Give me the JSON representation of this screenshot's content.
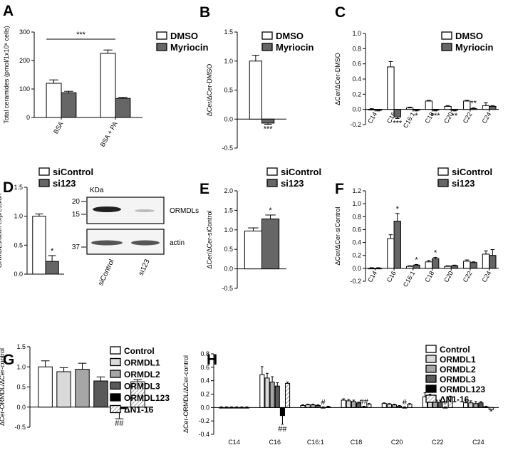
{
  "chart_data": [
    {
      "panel": "A",
      "type": "bar",
      "ylabel": "Total ceramides (pmol/1x10⁶ cells)",
      "categories": [
        "BSA",
        "BSA + PA"
      ],
      "series": [
        {
          "name": "DMSO",
          "color": "#ffffff",
          "values": [
            120,
            225
          ],
          "errors": [
            12,
            12
          ]
        },
        {
          "name": "Myriocin",
          "color": "#666666",
          "values": [
            87,
            67
          ],
          "errors": [
            5,
            4
          ]
        }
      ],
      "ylim": [
        0,
        300
      ],
      "yticks": [
        0,
        100,
        200,
        300
      ],
      "annotation": "***"
    },
    {
      "panel": "B",
      "type": "bar",
      "ylabel": "ΔCer/ΔCer-DMSO",
      "categories": [
        null
      ],
      "series": [
        {
          "name": "DMSO",
          "color": "#ffffff",
          "values": [
            1.0
          ],
          "errors": [
            0.1
          ]
        },
        {
          "name": "Myriocin",
          "color": "#666666",
          "values": [
            -0.07
          ],
          "errors": [
            0.02
          ]
        }
      ],
      "ylim": [
        -0.5,
        1.5
      ],
      "yticks": [
        {
          "value": -0.5,
          "label": "-0.5"
        },
        {
          "value": 0,
          "label": "0.0"
        },
        {
          "value": 0.5,
          "label": "0.5"
        },
        {
          "value": 1,
          "label": "1.0"
        },
        {
          "value": 1.5,
          "label": "1.5"
        }
      ],
      "sig": [
        "***"
      ]
    },
    {
      "panel": "C",
      "type": "bar",
      "ylabel": "ΔCer/ΔCer-DMSO",
      "categories": [
        "C14",
        "C16",
        "C16:1",
        "C18",
        "C20",
        "C22",
        "C24"
      ],
      "series": [
        {
          "name": "DMSO",
          "color": "#ffffff",
          "values": [
            0.0,
            0.56,
            0.02,
            0.11,
            0.04,
            0.11,
            0.05
          ],
          "errors": [
            0.01,
            0.07,
            0.01,
            0.01,
            0.01,
            0.01,
            0.04
          ]
        },
        {
          "name": "Myriocin",
          "color": "#666666",
          "values": [
            -0.01,
            -0.1,
            -0.01,
            -0.01,
            -0.01,
            0.01,
            0.04
          ],
          "errors": [
            0.01,
            0.02,
            0.01,
            0.01,
            0.01,
            0.01,
            0.01
          ]
        }
      ],
      "ylim": [
        -0.2,
        1.0
      ],
      "yticks": [
        {
          "value": -0.2,
          "label": "-0.2"
        },
        {
          "value": 0,
          "label": "0.0"
        },
        {
          "value": 0.2,
          "label": "0.2"
        },
        {
          "value": 0.4,
          "label": "0.4"
        },
        {
          "value": 0.6,
          "label": "0.6"
        },
        {
          "value": 0.8,
          "label": "0.8"
        },
        {
          "value": 1,
          "label": "1.0"
        }
      ],
      "sig": [
        null,
        "***",
        "*",
        "***",
        "**",
        "**",
        null
      ]
    },
    {
      "panel": "D",
      "type": "bar",
      "ylabel": "ORMDLs/actin expression",
      "categories": [
        null
      ],
      "series": [
        {
          "name": "siControl",
          "color": "#ffffff",
          "values": [
            1.0
          ],
          "errors": [
            0.04
          ]
        },
        {
          "name": "si123",
          "color": "#666666",
          "values": [
            0.22
          ],
          "errors": [
            0.1
          ]
        }
      ],
      "ylim": [
        0,
        1.5
      ],
      "yticks": [
        {
          "value": 0,
          "label": "0.0"
        },
        {
          "value": 0.5,
          "label": "0.5"
        },
        {
          "value": 1,
          "label": "1.0"
        },
        {
          "value": 1.5,
          "label": "1.5"
        }
      ],
      "sig": [
        "*"
      ]
    },
    {
      "panel": "E",
      "type": "bar",
      "ylabel": "ΔCer/ΔCer-siControl",
      "categories": [
        null
      ],
      "series": [
        {
          "name": "siControl",
          "color": "#ffffff",
          "values": [
            0.97
          ],
          "errors": [
            0.08
          ]
        },
        {
          "name": "si123",
          "color": "#666666",
          "values": [
            1.28
          ],
          "errors": [
            0.1
          ]
        }
      ],
      "ylim": [
        -0.5,
        2.0
      ],
      "yticks": [
        {
          "value": -0.5,
          "label": "-0.5"
        },
        {
          "value": 0,
          "label": "0.0"
        },
        {
          "value": 0.5,
          "label": "0.5"
        },
        {
          "value": 1,
          "label": "1.0"
        },
        {
          "value": 1.5,
          "label": "1.5"
        },
        {
          "value": 2,
          "label": "2.0"
        }
      ],
      "sig": [
        "*"
      ]
    },
    {
      "panel": "F",
      "type": "bar",
      "ylabel": "ΔCer/ΔCer-siControl",
      "categories": [
        "C14",
        "C16",
        "C16:1",
        "C18",
        "C20",
        "C22",
        "C24"
      ],
      "series": [
        {
          "name": "siControl",
          "color": "#ffffff",
          "values": [
            0.0,
            0.46,
            0.03,
            0.1,
            0.03,
            0.11,
            0.22
          ],
          "errors": [
            0.01,
            0.06,
            0.01,
            0.02,
            0.01,
            0.02,
            0.05
          ]
        },
        {
          "name": "si123",
          "color": "#666666",
          "values": [
            0.0,
            0.73,
            0.05,
            0.15,
            0.04,
            0.09,
            0.2
          ],
          "errors": [
            0.01,
            0.12,
            0.01,
            0.02,
            0.01,
            0.01,
            0.09
          ]
        }
      ],
      "ylim": [
        -0.2,
        1.2
      ],
      "yticks": [
        {
          "value": -0.2,
          "label": "-0.2"
        },
        {
          "value": 0,
          "label": "0.0"
        },
        {
          "value": 0.2,
          "label": "0.2"
        },
        {
          "value": 0.4,
          "label": "0.4"
        },
        {
          "value": 0.6,
          "label": "0.6"
        },
        {
          "value": 0.8,
          "label": "0.8"
        },
        {
          "value": 1,
          "label": "1.0"
        },
        {
          "value": 1.2,
          "label": "1.2"
        }
      ],
      "sig": [
        null,
        "*",
        "*",
        "*",
        null,
        null,
        null
      ]
    },
    {
      "panel": "G",
      "type": "bar",
      "ylabel": "ΔCer-ORMDL/ΔCer-control",
      "categories": [
        null
      ],
      "series": [
        {
          "name": "Control",
          "color": "#ffffff",
          "values": [
            1.0
          ],
          "errors": [
            0.15
          ]
        },
        {
          "name": "ORMDL1",
          "color": "#d9d9d9",
          "values": [
            0.88
          ],
          "errors": [
            0.1
          ]
        },
        {
          "name": "ORMDL2",
          "color": "#a6a6a6",
          "values": [
            0.94
          ],
          "errors": [
            0.15
          ]
        },
        {
          "name": "ORMDL3",
          "color": "#595959",
          "values": [
            0.65
          ],
          "errors": [
            0.1
          ]
        },
        {
          "name": "ORMDL123",
          "color": "#000000",
          "values": [
            -0.04
          ],
          "errors": [
            0.25
          ]
        },
        {
          "name": "ΔN1-16",
          "color": "#ffffff",
          "pattern": "hatch",
          "values": [
            0.63
          ],
          "errors": [
            0.05
          ]
        }
      ],
      "ylim": [
        -0.5,
        1.5
      ],
      "yticks": [
        {
          "value": -0.5,
          "label": "-0.5"
        },
        {
          "value": 0,
          "label": "0.0"
        },
        {
          "value": 0.5,
          "label": "0.5"
        },
        {
          "value": 1,
          "label": "1.0"
        },
        {
          "value": 1.5,
          "label": "1.5"
        }
      ],
      "sig": [
        "##"
      ]
    },
    {
      "panel": "H",
      "type": "bar",
      "ylabel": "ΔCer-ORMDL/ΔCer-control",
      "categories": [
        "C14",
        "C16",
        "C16:1",
        "C18",
        "C20",
        "C22",
        "C24"
      ],
      "series": [
        {
          "name": "Control",
          "color": "#ffffff",
          "values": [
            0.0,
            0.49,
            0.03,
            0.11,
            0.06,
            0.16,
            0.07
          ],
          "errors": [
            0.01,
            0.12,
            0.01,
            0.02,
            0.01,
            0.06,
            0.04
          ]
        },
        {
          "name": "ORMDL1",
          "color": "#d9d9d9",
          "values": [
            0.0,
            0.44,
            0.04,
            0.1,
            0.05,
            0.15,
            0.07
          ],
          "errors": [
            0.01,
            0.07,
            0.01,
            0.02,
            0.01,
            0.05,
            0.03
          ]
        },
        {
          "name": "ORMDL2",
          "color": "#a6a6a6",
          "values": [
            0.0,
            0.38,
            0.04,
            0.09,
            0.04,
            0.11,
            0.06
          ],
          "errors": [
            0.01,
            0.08,
            0.01,
            0.02,
            0.01,
            0.05,
            0.03
          ]
        },
        {
          "name": "ORMDL3",
          "color": "#595959",
          "values": [
            0.0,
            0.32,
            0.03,
            0.07,
            0.02,
            0.08,
            0.07
          ],
          "errors": [
            0.01,
            0.05,
            0.01,
            0.01,
            0.01,
            0.03,
            0.02
          ]
        },
        {
          "name": "ORMDL123",
          "color": "#000000",
          "values": [
            0.0,
            -0.12,
            0.0,
            0.01,
            0.0,
            0.0,
            0.01
          ],
          "errors": [
            0.01,
            0.13,
            0.01,
            0.01,
            0.01,
            0.01,
            0.01
          ]
        },
        {
          "name": "ΔN1-16",
          "color": "#ffffff",
          "pattern": "hatch",
          "values": [
            0.0,
            0.36,
            0.01,
            0.05,
            0.05,
            0.16,
            -0.03
          ],
          "errors": [
            0.01,
            0.02,
            0.01,
            0.01,
            0.01,
            0.01,
            0.02
          ]
        }
      ],
      "ylim": [
        -0.4,
        0.8
      ],
      "yticks": [
        {
          "value": -0.4,
          "label": "-0.4"
        },
        {
          "value": -0.2,
          "label": "-0.2"
        },
        {
          "value": 0,
          "label": "0.0"
        },
        {
          "value": 0.2,
          "label": "0.2"
        },
        {
          "value": 0.4,
          "label": "0.4"
        },
        {
          "value": 0.6,
          "label": "0.6"
        },
        {
          "value": 0.8,
          "label": "0.8"
        }
      ],
      "sig": [
        null,
        "##",
        "#",
        "##",
        "#",
        "#",
        null
      ]
    }
  ],
  "blot": {
    "unit": "KDa",
    "markers": [
      "20",
      "15",
      "37"
    ],
    "bands": [
      "ORMDLs",
      "actin"
    ],
    "lanes": [
      "siControl",
      "si123"
    ]
  }
}
